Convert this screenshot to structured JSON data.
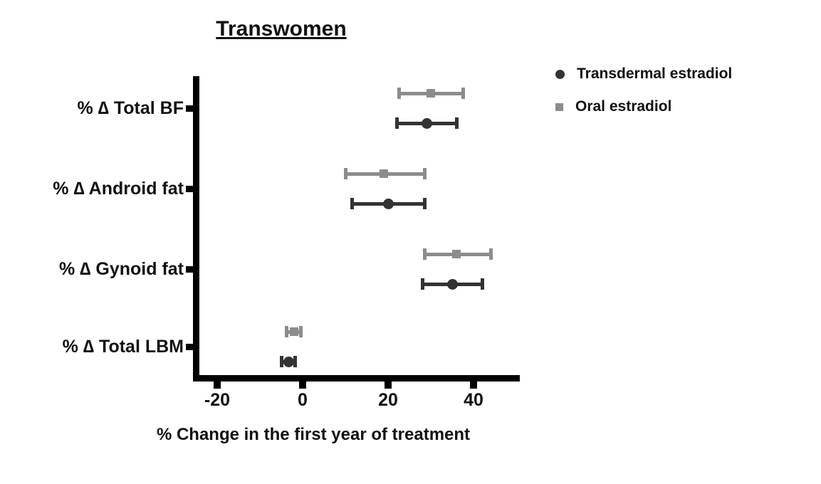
{
  "chart_data": {
    "type": "scatter",
    "title": "Transwomen",
    "xlabel": "% Change in the first year of treatment",
    "categories": [
      "% ∆ Total BF",
      "% ∆ Android fat",
      "% ∆ Gynoid fat",
      "% ∆ Total LBM"
    ],
    "xlim": [
      -26,
      51
    ],
    "xticks": [
      -20,
      0,
      20,
      40
    ],
    "grid": false,
    "legend_position": "top-right",
    "axis_color": "#000000",
    "series": [
      {
        "name": "Transdermal estradiol",
        "marker": "circle",
        "color": "#333333",
        "points": [
          {
            "category": "% ∆ Total BF",
            "value": 29,
            "ci_low": 22,
            "ci_high": 36
          },
          {
            "category": "% ∆ Android fat",
            "value": 20,
            "ci_low": 11.5,
            "ci_high": 28.5
          },
          {
            "category": "% ∆ Gynoid fat",
            "value": 35,
            "ci_low": 28,
            "ci_high": 42
          },
          {
            "category": "% ∆ Total LBM",
            "value": -3.3,
            "ci_low": -5,
            "ci_high": -1.7
          }
        ]
      },
      {
        "name": "Oral estradiol",
        "marker": "square",
        "color": "#8c8c8c",
        "points": [
          {
            "category": "% ∆ Total BF",
            "value": 30,
            "ci_low": 22.5,
            "ci_high": 37.5
          },
          {
            "category": "% ∆ Android fat",
            "value": 19,
            "ci_low": 10,
            "ci_high": 28.5
          },
          {
            "category": "% ∆ Gynoid fat",
            "value": 36,
            "ci_low": 28.5,
            "ci_high": 44
          },
          {
            "category": "% ∆ Total LBM",
            "value": -2,
            "ci_low": -3.7,
            "ci_high": -0.5
          }
        ]
      }
    ]
  }
}
